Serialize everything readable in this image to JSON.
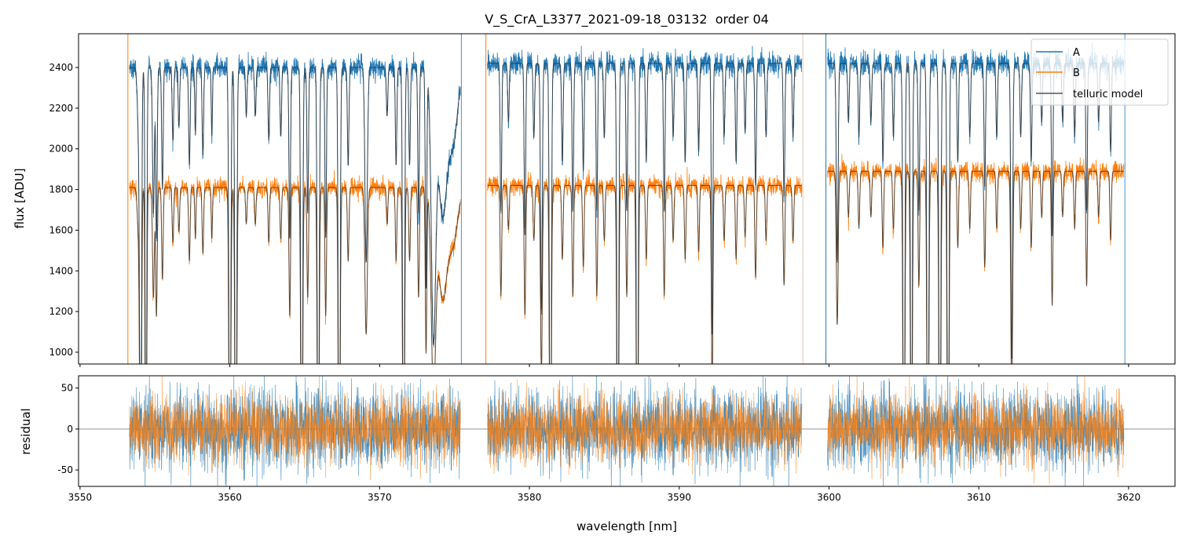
{
  "chart_data": {
    "type": "line",
    "title": "V_S_CrA_L3377_2021-09-18_03132  order 04",
    "xlabel": "wavelength [nm]",
    "xlim": [
      3549.9,
      3623.1
    ],
    "xticks": [
      3550,
      3560,
      3570,
      3580,
      3590,
      3600,
      3610,
      3620
    ],
    "panels": {
      "flux": {
        "ylabel": "flux [ADU]",
        "ylim": [
          942,
          2566
        ],
        "yticks": [
          1000,
          1200,
          1400,
          1600,
          1800,
          2000,
          2200,
          2400
        ]
      },
      "residual": {
        "ylabel": "residual",
        "ylim": [
          -70,
          65
        ],
        "yticks": [
          -50,
          0,
          50
        ]
      }
    },
    "legend": {
      "position": "top-right",
      "entries": [
        "A",
        "B",
        "telluric model"
      ]
    },
    "colors": {
      "A": "#1f77b4",
      "B": "#ff7f0e",
      "model": "#333333"
    },
    "segments": [
      {
        "start": 3553.3,
        "end": 3575.4,
        "cont_A": 2400,
        "cont_B": 1810
      },
      {
        "start": 3577.2,
        "end": 3598.2,
        "cont_A": 2420,
        "cont_B": 1820
      },
      {
        "start": 3599.9,
        "end": 3619.7,
        "cont_A": 2420,
        "cont_B": 1890
      }
    ],
    "noise": {
      "flux_A": 28,
      "flux_B": 24,
      "residual_A": 24,
      "residual_B": 20
    },
    "absorption_lines": [
      [
        3553.9,
        0.12,
        0.08
      ],
      [
        3554.04,
        1,
        0.06
      ],
      [
        3554.4,
        1,
        0.05
      ],
      [
        3554.9,
        0.3,
        0.06
      ],
      [
        3555.1,
        0.35,
        0.05
      ],
      [
        3555.5,
        0.25,
        0.05
      ],
      [
        3556.2,
        0.15,
        0.05
      ],
      [
        3556.6,
        0.12,
        0.05
      ],
      [
        3557.3,
        0.2,
        0.05
      ],
      [
        3557.7,
        0.14,
        0.04
      ],
      [
        3558.2,
        0.18,
        0.05
      ],
      [
        3558.8,
        0.14,
        0.04
      ],
      [
        3560.0,
        1,
        0.06
      ],
      [
        3560.4,
        1,
        0.06
      ],
      [
        3561.1,
        0.1,
        0.05
      ],
      [
        3561.7,
        0.1,
        0.05
      ],
      [
        3562.6,
        0.15,
        0.05
      ],
      [
        3563.4,
        0.14,
        0.05
      ],
      [
        3564.0,
        0.35,
        0.05
      ],
      [
        3564.8,
        1,
        0.06
      ],
      [
        3565.2,
        0.3,
        0.05
      ],
      [
        3565.9,
        1,
        0.06
      ],
      [
        3566.4,
        0.35,
        0.05
      ],
      [
        3567.3,
        1,
        0.06
      ],
      [
        3567.9,
        0.2,
        0.05
      ],
      [
        3569.1,
        0.4,
        0.08
      ],
      [
        3570.5,
        0.1,
        0.05
      ],
      [
        3571.1,
        0.2,
        0.05
      ],
      [
        3571.6,
        1,
        0.06
      ],
      [
        3572.0,
        0.2,
        0.05
      ],
      [
        3572.6,
        0.3,
        0.05
      ],
      [
        3573.1,
        0.45,
        0.05
      ],
      [
        3573.6,
        0.55,
        0.15
      ],
      [
        3574.2,
        0.3,
        0.3
      ],
      [
        3574.9,
        0.15,
        0.3
      ],
      [
        3578.1,
        0.3,
        0.05
      ],
      [
        3578.6,
        0.12,
        0.05
      ],
      [
        3579.7,
        0.35,
        0.05
      ],
      [
        3580.3,
        0.15,
        0.05
      ],
      [
        3580.8,
        0.5,
        0.06
      ],
      [
        3581.4,
        1,
        0.06
      ],
      [
        3582.2,
        0.2,
        0.05
      ],
      [
        3582.9,
        0.3,
        0.05
      ],
      [
        3583.6,
        0.22,
        0.05
      ],
      [
        3584.5,
        0.3,
        0.05
      ],
      [
        3585.0,
        0.15,
        0.05
      ],
      [
        3585.9,
        1,
        0.06
      ],
      [
        3586.5,
        0.3,
        0.05
      ],
      [
        3587.2,
        1,
        0.06
      ],
      [
        3587.8,
        0.2,
        0.05
      ],
      [
        3589.0,
        0.3,
        0.05
      ],
      [
        3589.6,
        0.15,
        0.05
      ],
      [
        3590.4,
        0.2,
        0.05
      ],
      [
        3591.3,
        0.18,
        0.05
      ],
      [
        3592.2,
        0.55,
        0.05
      ],
      [
        3593.0,
        0.15,
        0.05
      ],
      [
        3593.8,
        0.2,
        0.05
      ],
      [
        3594.4,
        0.14,
        0.05
      ],
      [
        3595.1,
        0.25,
        0.05
      ],
      [
        3595.8,
        0.15,
        0.05
      ],
      [
        3597.0,
        0.27,
        0.05
      ],
      [
        3597.6,
        0.15,
        0.05
      ],
      [
        3600.55,
        0.4,
        0.06
      ],
      [
        3601.3,
        0.12,
        0.05
      ],
      [
        3602.0,
        0.15,
        0.05
      ],
      [
        3602.8,
        0.12,
        0.05
      ],
      [
        3603.6,
        0.2,
        0.05
      ],
      [
        3604.3,
        0.15,
        0.05
      ],
      [
        3605.0,
        1,
        0.06
      ],
      [
        3605.5,
        0.9,
        0.06
      ],
      [
        3606.0,
        0.3,
        0.05
      ],
      [
        3606.6,
        1,
        0.06
      ],
      [
        3607.4,
        1,
        0.06
      ],
      [
        3607.95,
        1,
        0.06
      ],
      [
        3608.6,
        0.2,
        0.05
      ],
      [
        3609.4,
        0.15,
        0.05
      ],
      [
        3610.4,
        0.25,
        0.05
      ],
      [
        3611.2,
        0.15,
        0.05
      ],
      [
        3612.2,
        0.6,
        0.06
      ],
      [
        3612.8,
        0.15,
        0.05
      ],
      [
        3613.5,
        0.2,
        0.05
      ],
      [
        3614.2,
        0.12,
        0.05
      ],
      [
        3614.9,
        0.35,
        0.05
      ],
      [
        3615.6,
        0.12,
        0.05
      ],
      [
        3616.4,
        0.15,
        0.05
      ],
      [
        3617.2,
        0.3,
        0.05
      ],
      [
        3618.0,
        0.12,
        0.05
      ],
      [
        3618.8,
        0.18,
        0.05
      ]
    ]
  }
}
